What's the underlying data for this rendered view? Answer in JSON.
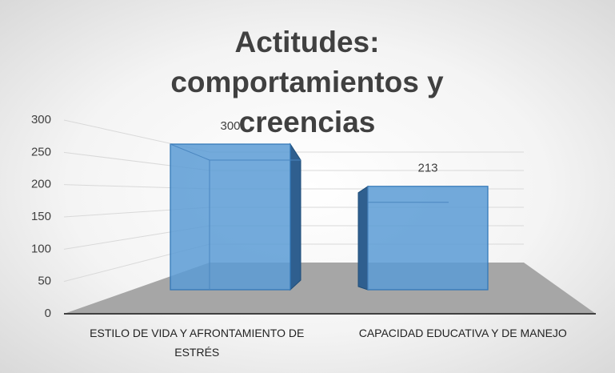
{
  "chart_data": {
    "type": "bar3d",
    "title": "Actitudes: comportamientos y creencias",
    "categories": [
      "ESTILO DE VIDA Y AFRONTAMIENTO DE ESTRÉS",
      "CAPACIDAD EDUCATIVA Y DE MANEJO"
    ],
    "values": [
      300,
      213
    ],
    "color": "#5b9bd5",
    "ylim": [
      0,
      300
    ],
    "yticks": [
      0,
      50,
      100,
      150,
      200,
      250,
      300
    ],
    "grid": true
  }
}
